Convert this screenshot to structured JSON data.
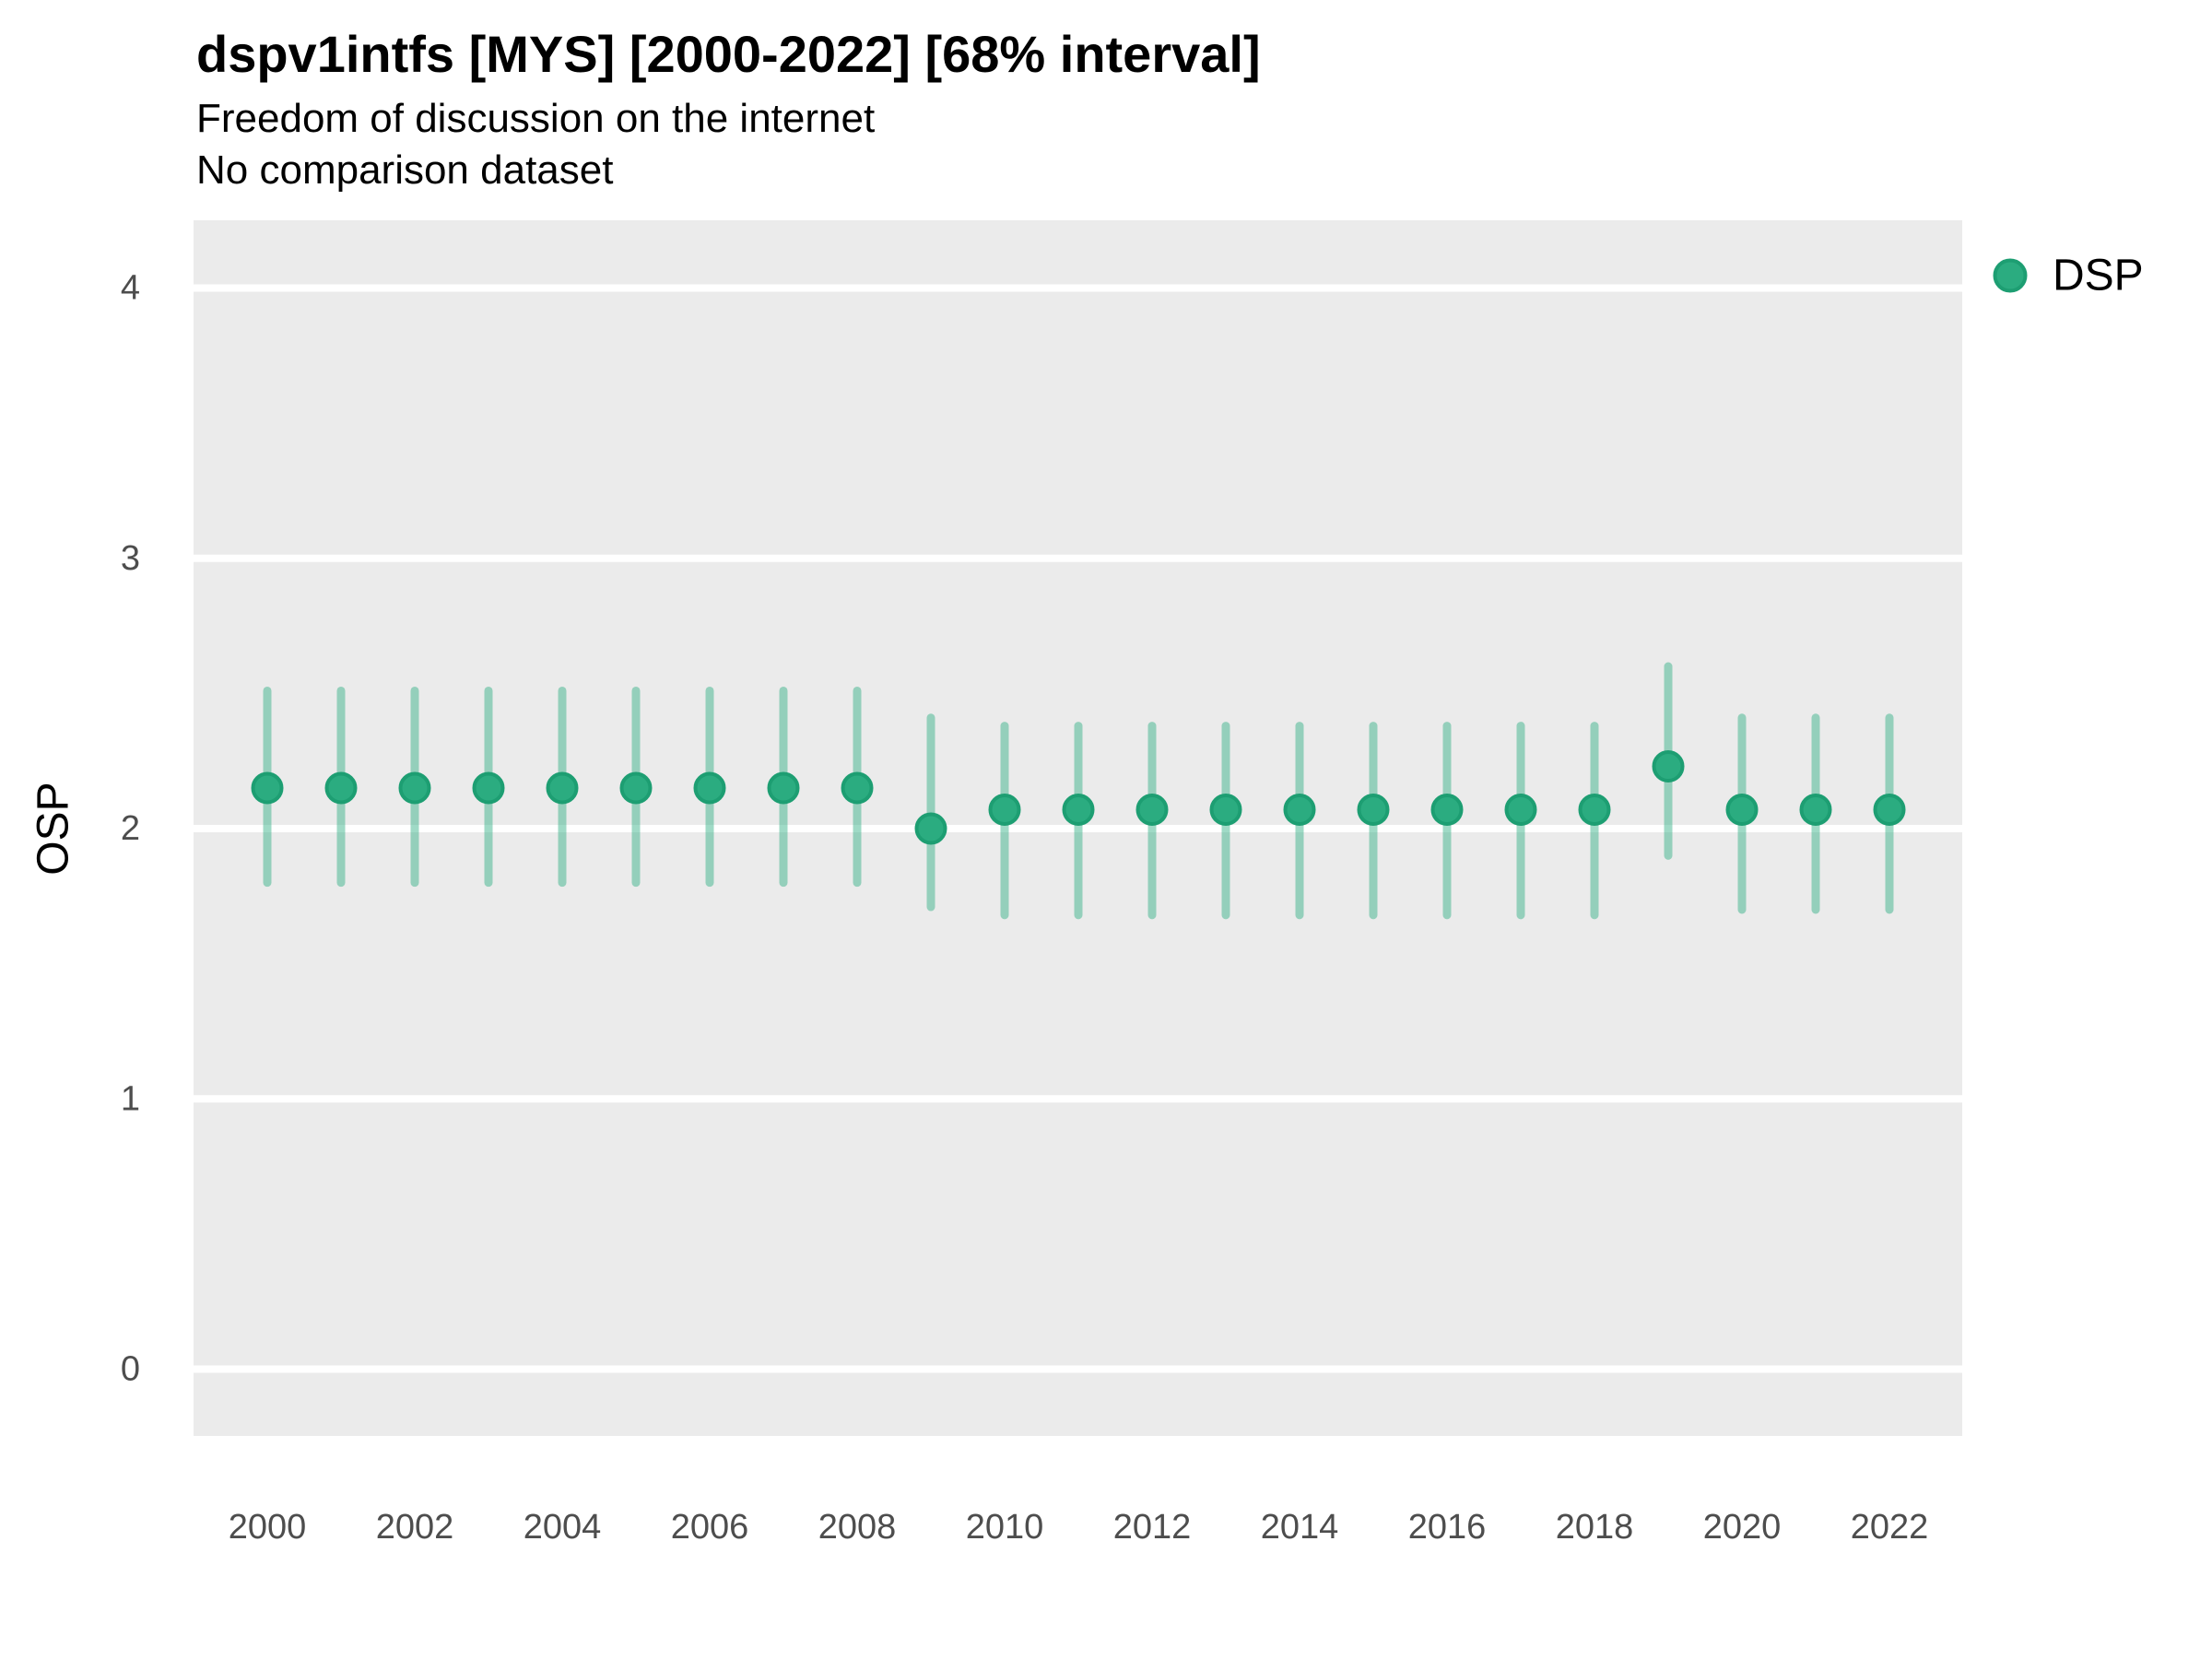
{
  "header": {
    "title": "dspv1intfs [MYS] [2000-2022] [68% interval]",
    "subtitle": "Freedom of discussion on the internet",
    "note": "No comparison dataset"
  },
  "legend": {
    "items": [
      {
        "label": "DSP",
        "swatch_fill": "#2BAC80",
        "swatch_stroke": "#1D9E72"
      }
    ],
    "position": "right"
  },
  "chart_data": {
    "type": "scatter",
    "subtype": "pointrange",
    "title": "dspv1intfs [MYS] [2000-2022] [68% interval]",
    "subtitle": "Freedom of discussion on the internet",
    "note": "No comparison dataset",
    "xlabel": "",
    "ylabel": "OSP",
    "interval": "68%",
    "xlim": [
      1999,
      2023.1
    ],
    "ylim": [
      -0.25,
      4.25
    ],
    "grid": "major-horizontal-only",
    "legend_position": "right",
    "x_ticks": [
      "2000",
      "2002",
      "2004",
      "2006",
      "2008",
      "2010",
      "2012",
      "2014",
      "2016",
      "2018",
      "2020",
      "2022"
    ],
    "y_ticks": [
      "0",
      "1",
      "2",
      "3",
      "4"
    ],
    "series": [
      {
        "name": "DSP",
        "x": [
          2000,
          2001,
          2002,
          2003,
          2004,
          2005,
          2006,
          2007,
          2008,
          2009,
          2010,
          2011,
          2012,
          2013,
          2014,
          2015,
          2016,
          2017,
          2018,
          2019,
          2020,
          2021,
          2022
        ],
        "y": [
          2.15,
          2.15,
          2.15,
          2.15,
          2.15,
          2.15,
          2.15,
          2.15,
          2.15,
          2.0,
          2.07,
          2.07,
          2.07,
          2.07,
          2.07,
          2.07,
          2.07,
          2.07,
          2.07,
          2.23,
          2.07,
          2.07,
          2.07
        ],
        "lower": [
          1.8,
          1.8,
          1.8,
          1.8,
          1.8,
          1.8,
          1.8,
          1.8,
          1.8,
          1.71,
          1.68,
          1.68,
          1.68,
          1.68,
          1.68,
          1.68,
          1.68,
          1.68,
          1.68,
          1.9,
          1.7,
          1.7,
          1.7
        ],
        "upper": [
          2.51,
          2.51,
          2.51,
          2.51,
          2.51,
          2.51,
          2.51,
          2.51,
          2.51,
          2.41,
          2.38,
          2.38,
          2.38,
          2.38,
          2.38,
          2.38,
          2.38,
          2.38,
          2.38,
          2.6,
          2.41,
          2.41,
          2.41
        ]
      }
    ],
    "colors": {
      "point_fill": "#2BAC80",
      "point_stroke": "#1D9E72",
      "interval_bar": "#2BAC80",
      "interval_bar_opacity": "0.45",
      "panel_background": "#EBEBEB",
      "gridline": "#FFFFFF",
      "tick_label": "#4D4D4D",
      "text": "#000000"
    }
  }
}
